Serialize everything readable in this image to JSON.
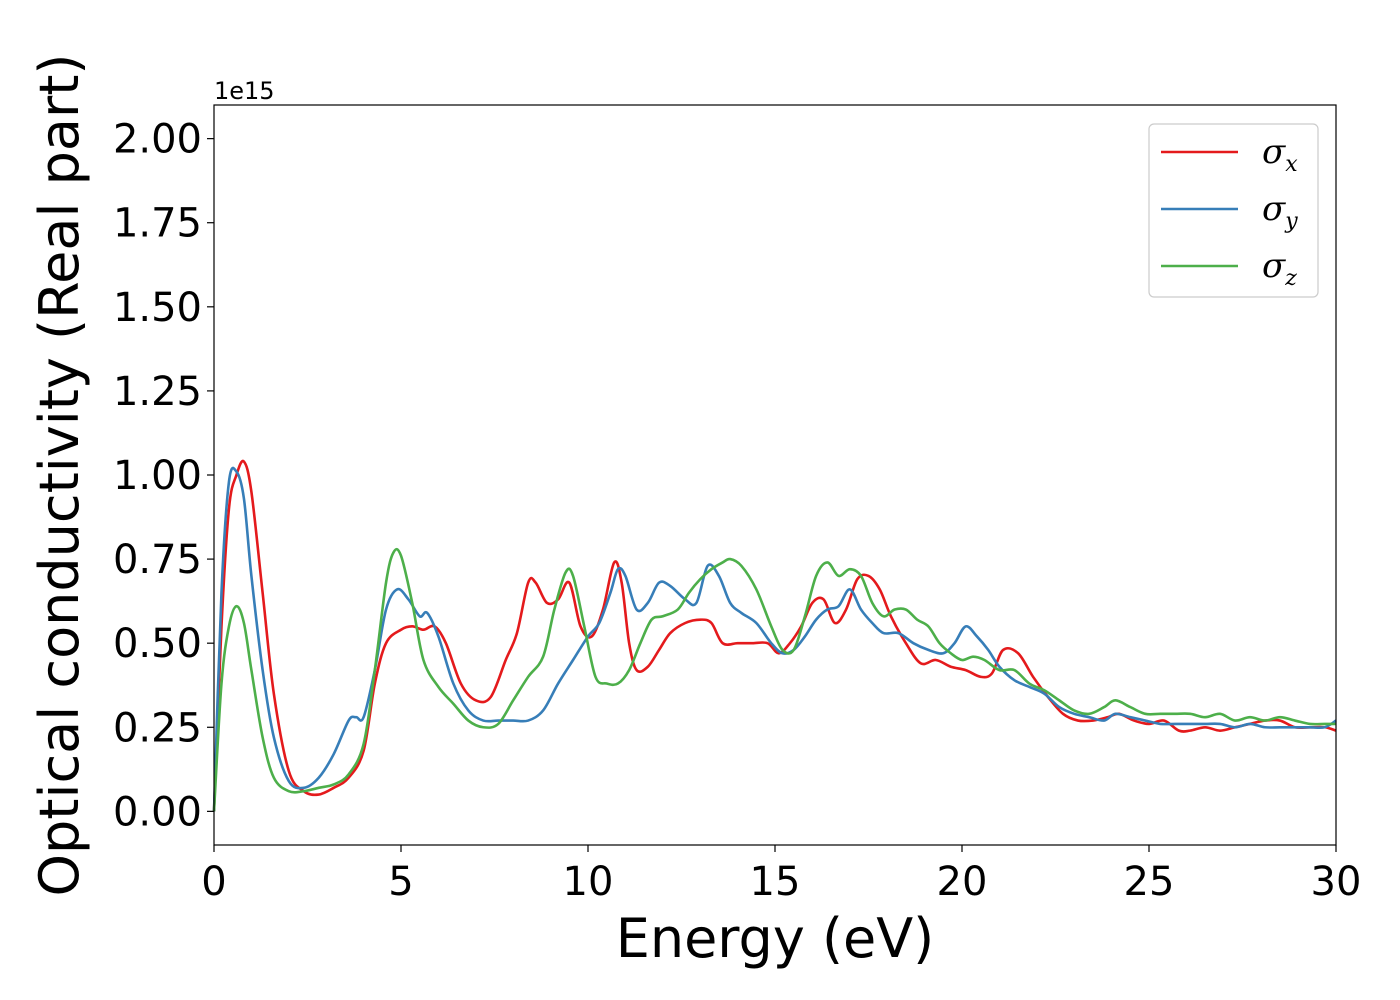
{
  "chart_data": {
    "type": "line",
    "xlabel": "Energy (eV)",
    "ylabel": "Optical conductivity (Real part)",
    "y_offset_label": "1e15",
    "xlim": [
      0,
      30
    ],
    "ylim": [
      -0.1,
      2.1
    ],
    "x_ticks": [
      0,
      5,
      10,
      15,
      20,
      25,
      30
    ],
    "x_tick_labels": [
      "0",
      "5",
      "10",
      "15",
      "20",
      "25",
      "30"
    ],
    "y_ticks": [
      0,
      0.25,
      0.5,
      0.75,
      1.0,
      1.25,
      1.5,
      1.75,
      2.0
    ],
    "y_tick_labels": [
      "0.00",
      "0.25",
      "0.50",
      "0.75",
      "1.00",
      "1.25",
      "1.50",
      "1.75",
      "2.00"
    ],
    "grid": false,
    "legend_position": "top-right",
    "series": [
      {
        "name": "σx",
        "symbol": "σ",
        "subscript": "x",
        "color": "#e41a1c",
        "x": [
          0,
          0.2,
          0.4,
          0.6,
          0.8,
          1.0,
          1.3,
          1.6,
          2.0,
          2.4,
          2.8,
          3.2,
          3.6,
          4.0,
          4.3,
          4.6,
          5.0,
          5.3,
          5.6,
          5.9,
          6.2,
          6.6,
          7.0,
          7.4,
          7.8,
          8.1,
          8.4,
          8.6,
          8.9,
          9.2,
          9.5,
          9.8,
          10.1,
          10.4,
          10.7,
          10.9,
          11.1,
          11.3,
          11.6,
          11.9,
          12.2,
          12.6,
          13.0,
          13.3,
          13.6,
          14.0,
          14.4,
          14.8,
          15.1,
          15.4,
          15.7,
          16.0,
          16.3,
          16.6,
          16.9,
          17.2,
          17.5,
          17.8,
          18.1,
          18.5,
          18.9,
          19.3,
          19.7,
          20.1,
          20.5,
          20.8,
          21.1,
          21.5,
          21.9,
          22.3,
          22.7,
          23.1,
          23.5,
          23.9,
          24.2,
          24.6,
          25.0,
          25.4,
          25.8,
          26.1,
          26.5,
          26.9,
          27.3,
          27.7,
          28.1,
          28.5,
          28.9,
          29.3,
          29.7,
          30.0
        ],
        "y": [
          0,
          0.55,
          0.9,
          1.0,
          1.04,
          0.95,
          0.65,
          0.35,
          0.12,
          0.06,
          0.05,
          0.07,
          0.1,
          0.18,
          0.38,
          0.5,
          0.54,
          0.55,
          0.54,
          0.55,
          0.5,
          0.38,
          0.33,
          0.34,
          0.45,
          0.53,
          0.68,
          0.68,
          0.62,
          0.63,
          0.68,
          0.55,
          0.52,
          0.6,
          0.74,
          0.68,
          0.5,
          0.42,
          0.43,
          0.48,
          0.53,
          0.56,
          0.57,
          0.56,
          0.5,
          0.5,
          0.5,
          0.5,
          0.47,
          0.5,
          0.55,
          0.62,
          0.63,
          0.56,
          0.6,
          0.69,
          0.7,
          0.66,
          0.58,
          0.5,
          0.44,
          0.45,
          0.43,
          0.42,
          0.4,
          0.41,
          0.48,
          0.47,
          0.4,
          0.34,
          0.29,
          0.27,
          0.27,
          0.28,
          0.29,
          0.27,
          0.26,
          0.27,
          0.24,
          0.24,
          0.25,
          0.24,
          0.25,
          0.26,
          0.27,
          0.27,
          0.25,
          0.25,
          0.25,
          0.24
        ]
      },
      {
        "name": "σy",
        "symbol": "σ",
        "subscript": "y",
        "color": "#377eb8",
        "x": [
          0,
          0.2,
          0.4,
          0.6,
          0.8,
          1.0,
          1.3,
          1.6,
          2.0,
          2.4,
          2.8,
          3.2,
          3.6,
          3.8,
          4.0,
          4.3,
          4.6,
          4.9,
          5.2,
          5.5,
          5.7,
          6.0,
          6.4,
          6.8,
          7.2,
          7.6,
          8.0,
          8.4,
          8.8,
          9.2,
          9.6,
          10.0,
          10.3,
          10.6,
          10.8,
          11.0,
          11.3,
          11.6,
          11.9,
          12.2,
          12.6,
          12.9,
          13.2,
          13.5,
          13.8,
          14.1,
          14.5,
          14.9,
          15.2,
          15.5,
          15.8,
          16.1,
          16.4,
          16.7,
          17.0,
          17.3,
          17.6,
          17.9,
          18.3,
          18.7,
          19.1,
          19.5,
          19.8,
          20.1,
          20.4,
          20.7,
          21.0,
          21.4,
          21.8,
          22.2,
          22.6,
          23.0,
          23.4,
          23.8,
          24.1,
          24.5,
          24.9,
          25.3,
          25.7,
          26.1,
          26.5,
          26.9,
          27.3,
          27.7,
          28.1,
          28.5,
          28.9,
          29.3,
          29.7,
          30.0
        ],
        "y": [
          0,
          0.65,
          0.98,
          1.01,
          0.93,
          0.7,
          0.42,
          0.22,
          0.09,
          0.07,
          0.1,
          0.17,
          0.27,
          0.28,
          0.28,
          0.42,
          0.6,
          0.66,
          0.63,
          0.58,
          0.59,
          0.52,
          0.38,
          0.3,
          0.27,
          0.27,
          0.27,
          0.27,
          0.3,
          0.38,
          0.45,
          0.52,
          0.56,
          0.65,
          0.72,
          0.7,
          0.6,
          0.62,
          0.68,
          0.67,
          0.63,
          0.62,
          0.73,
          0.7,
          0.62,
          0.59,
          0.56,
          0.5,
          0.47,
          0.48,
          0.52,
          0.57,
          0.6,
          0.61,
          0.66,
          0.6,
          0.56,
          0.53,
          0.53,
          0.5,
          0.48,
          0.47,
          0.5,
          0.55,
          0.52,
          0.48,
          0.43,
          0.39,
          0.37,
          0.35,
          0.31,
          0.29,
          0.28,
          0.27,
          0.29,
          0.28,
          0.27,
          0.26,
          0.26,
          0.26,
          0.26,
          0.26,
          0.25,
          0.26,
          0.25,
          0.25,
          0.25,
          0.25,
          0.25,
          0.27
        ]
      },
      {
        "name": "σz",
        "symbol": "σ",
        "subscript": "z",
        "color": "#4daf4a",
        "x": [
          0,
          0.2,
          0.4,
          0.6,
          0.8,
          1.0,
          1.3,
          1.6,
          2.0,
          2.4,
          2.8,
          3.2,
          3.6,
          4.0,
          4.3,
          4.6,
          4.8,
          5.0,
          5.3,
          5.6,
          6.0,
          6.4,
          6.8,
          7.2,
          7.6,
          8.0,
          8.4,
          8.8,
          9.1,
          9.4,
          9.6,
          9.9,
          10.2,
          10.5,
          10.8,
          11.1,
          11.4,
          11.7,
          12.0,
          12.4,
          12.7,
          13.0,
          13.3,
          13.6,
          13.8,
          14.1,
          14.5,
          14.9,
          15.2,
          15.5,
          15.8,
          16.1,
          16.4,
          16.7,
          17.0,
          17.3,
          17.6,
          17.9,
          18.2,
          18.5,
          18.8,
          19.1,
          19.4,
          19.7,
          20.0,
          20.3,
          20.6,
          21.0,
          21.4,
          21.8,
          22.2,
          22.6,
          23.0,
          23.4,
          23.8,
          24.1,
          24.5,
          24.9,
          25.3,
          25.7,
          26.1,
          26.5,
          26.9,
          27.3,
          27.7,
          28.1,
          28.5,
          28.9,
          29.3,
          29.7,
          30.0
        ],
        "y": [
          0,
          0.38,
          0.55,
          0.61,
          0.56,
          0.42,
          0.22,
          0.1,
          0.06,
          0.06,
          0.07,
          0.08,
          0.11,
          0.2,
          0.42,
          0.68,
          0.77,
          0.76,
          0.62,
          0.45,
          0.37,
          0.32,
          0.27,
          0.25,
          0.26,
          0.33,
          0.4,
          0.46,
          0.6,
          0.71,
          0.7,
          0.55,
          0.4,
          0.38,
          0.38,
          0.42,
          0.5,
          0.57,
          0.58,
          0.6,
          0.65,
          0.69,
          0.72,
          0.74,
          0.75,
          0.73,
          0.66,
          0.55,
          0.48,
          0.48,
          0.58,
          0.7,
          0.74,
          0.7,
          0.72,
          0.7,
          0.62,
          0.58,
          0.6,
          0.6,
          0.57,
          0.55,
          0.5,
          0.47,
          0.45,
          0.46,
          0.45,
          0.42,
          0.42,
          0.38,
          0.36,
          0.33,
          0.3,
          0.29,
          0.31,
          0.33,
          0.31,
          0.29,
          0.29,
          0.29,
          0.29,
          0.28,
          0.29,
          0.27,
          0.28,
          0.27,
          0.28,
          0.27,
          0.26,
          0.26,
          0.26
        ]
      }
    ]
  }
}
